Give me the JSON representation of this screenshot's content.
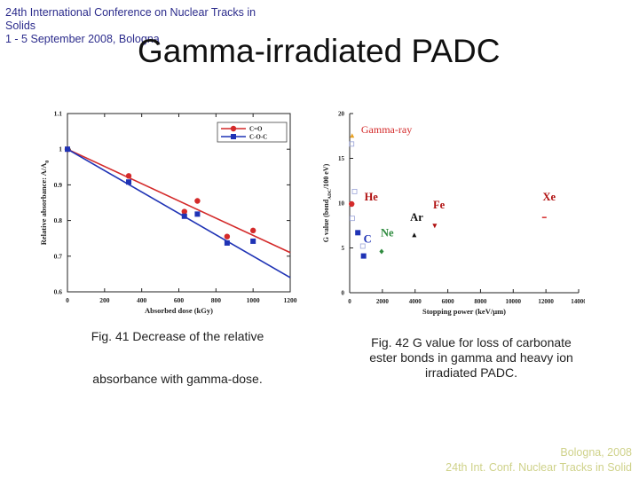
{
  "header": {
    "line1": "24th International Conference on Nuclear Tracks in",
    "line2": "Solids",
    "line3": "1 - 5 September 2008, Bologna"
  },
  "title": "Gamma-irradiated PADC",
  "fig41": {
    "caption_line1": "Fig. 41 Decrease of the relative",
    "caption_line2": "absorbance with gamma-dose."
  },
  "fig42": {
    "caption": "Fig. 42 G value for loss of carbonate ester bonds in gamma and heavy ion irradiated PADC."
  },
  "footer": {
    "line1": "Bologna,  2008",
    "line2": "24th Int. Conf. Nuclear Tracks in Solid"
  },
  "colors": {
    "red": "#d42a2a",
    "blue": "#1f33b5",
    "green": "#2e8b3e",
    "label_red": "#b01010"
  },
  "chart_data": [
    {
      "type": "scatter",
      "xlabel": "Absorbed dose (kGy)",
      "ylabel": "Relative absorbance: A/A0",
      "ylabel_main": "Relative absorbance: A/A",
      "ylabel_sub": "0",
      "xlim": [
        0,
        1200
      ],
      "ylim": [
        0.6,
        1.1
      ],
      "xticks": [
        0,
        200,
        400,
        600,
        800,
        1000,
        1200
      ],
      "yticks": [
        0.6,
        0.7,
        0.8,
        0.9,
        1,
        1.1
      ],
      "ytick_labels": [
        "0.6",
        "0.7",
        "0.8",
        "0.9",
        "1",
        "1.1"
      ],
      "legend_position": "top-right",
      "series": [
        {
          "name": "C=O",
          "color": "#d42a2a",
          "marker": "circle",
          "x": [
            0,
            330,
            630,
            700,
            860,
            1000
          ],
          "y": [
            1.0,
            0.925,
            0.825,
            0.855,
            0.755,
            0.772
          ],
          "fit": [
            [
              0,
              1.0
            ],
            [
              1230,
              0.71
            ]
          ]
        },
        {
          "name": "C-O-C",
          "color": "#1f33b5",
          "marker": "square",
          "x": [
            0,
            330,
            630,
            700,
            860,
            1000
          ],
          "y": [
            1.0,
            0.908,
            0.812,
            0.818,
            0.737,
            0.742
          ],
          "fit": [
            [
              0,
              1.0
            ],
            [
              1230,
              0.64
            ]
          ]
        }
      ]
    },
    {
      "type": "scatter",
      "xlabel": "Stopping power (keV/µm)",
      "ylabel": "G value (bond(ADC)/100 eV)",
      "ylabel_main": "G value (bond",
      "ylabel_sub": "ADC",
      "ylabel_tail": "/100 eV)",
      "xlim": [
        0,
        14000
      ],
      "ylim": [
        0,
        20
      ],
      "xticks": [
        0,
        2000,
        4000,
        6000,
        8000,
        10000,
        12000,
        14000
      ],
      "yticks": [
        0,
        5,
        10,
        15,
        20
      ],
      "annotations": [
        {
          "text": "Gamma-ray",
          "x": 700,
          "y": 17.8,
          "color": "#d42a2a",
          "font": "sans"
        },
        {
          "text": "He",
          "x": 900,
          "y": 10.3,
          "color": "#b01010",
          "font": "serif"
        },
        {
          "text": "Fe",
          "x": 5100,
          "y": 9.4,
          "color": "#b01010",
          "font": "serif"
        },
        {
          "text": "Xe",
          "x": 11800,
          "y": 10.3,
          "color": "#b01010",
          "font": "serif"
        },
        {
          "text": "Ar",
          "x": 3700,
          "y": 8.0,
          "color": "#111111",
          "font": "serif"
        },
        {
          "text": "Ne",
          "x": 1900,
          "y": 6.3,
          "color": "#2e8b3e",
          "font": "serif"
        },
        {
          "text": "C",
          "x": 850,
          "y": 5.6,
          "color": "#1f33b5",
          "font": "serif"
        }
      ],
      "points": [
        {
          "name": "gamma",
          "x": 150,
          "y": 17.5,
          "color": "#e8a020",
          "marker": "triangle"
        },
        {
          "name": "he",
          "x": 120,
          "y": 9.9,
          "color": "#d42a2a",
          "marker": "circle"
        },
        {
          "name": "c-1",
          "x": 500,
          "y": 6.7,
          "color": "#1f33b5",
          "marker": "square"
        },
        {
          "name": "c-2",
          "x": 850,
          "y": 4.1,
          "color": "#1f33b5",
          "marker": "square"
        },
        {
          "name": "ne",
          "x": 1950,
          "y": 4.6,
          "color": "#2e8b3e",
          "marker": "diamond"
        },
        {
          "name": "ar",
          "x": 3950,
          "y": 6.4,
          "color": "#111111",
          "marker": "triangle"
        },
        {
          "name": "fe",
          "x": 5200,
          "y": 7.5,
          "color": "#b01010",
          "marker": "triangle-down"
        },
        {
          "name": "xe",
          "x": 11900,
          "y": 8.4,
          "color": "#d42a2a",
          "marker": "dash"
        }
      ]
    }
  ]
}
